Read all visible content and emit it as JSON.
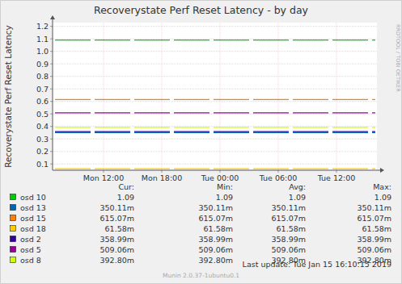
{
  "chart_data": {
    "type": "line",
    "title": "Recoverystate Perf Reset Latency - by day",
    "y_label": "Recoverystate Perf Reset Latency",
    "watermark": "RRDTOOL / TOBI OETIKER",
    "last_update": "Last update: Tue Jan 15 16:10:15 2019",
    "version": "Munin 2.0.37-1ubuntu0.1",
    "legend_columns": [
      "Cur:",
      "Min:",
      "Avg:",
      "Max:"
    ],
    "legend": "bottom",
    "grid": true,
    "line_style": "dashed",
    "x": [
      7,
      10,
      13,
      16,
      19,
      22,
      25,
      28,
      31,
      34,
      37,
      40
    ],
    "xlim": [
      6.75,
      40.17
    ],
    "xticks": [
      {
        "value": 12,
        "label": "Mon 12:00"
      },
      {
        "value": 18,
        "label": "Mon 18:00"
      },
      {
        "value": 24,
        "label": "Tue 00:00"
      },
      {
        "value": 30,
        "label": "Tue 06:00"
      },
      {
        "value": 36,
        "label": "Tue 12:00"
      }
    ],
    "ylim": [
      0.05,
      1.23
    ],
    "yticks": [
      0.1,
      0.2,
      0.3,
      0.4,
      0.5,
      0.6,
      0.7,
      0.8,
      0.9,
      {
        "value": 1,
        "label": "1.0"
      },
      1.1,
      1.2
    ],
    "series": [
      {
        "name": "osd 10",
        "color": "#00cc00",
        "values": [
          1.09,
          1.09,
          1.09,
          1.09,
          1.09,
          1.09,
          1.09,
          1.09,
          1.09,
          1.09,
          1.09,
          1.09
        ],
        "legend_values": [
          "1.09",
          "1.09",
          "1.09",
          "1.09"
        ]
      },
      {
        "name": "osd 13",
        "color": "#0066b3",
        "values": [
          0.35011,
          0.35011,
          0.35011,
          0.35011,
          0.35011,
          0.35011,
          0.35011,
          0.35011,
          0.35011,
          0.35011,
          0.35011,
          0.35011
        ],
        "legend_values": [
          "350.11m",
          "350.11m",
          "350.11m",
          "350.11m"
        ]
      },
      {
        "name": "osd 15",
        "color": "#ff8000",
        "values": [
          0.61507,
          0.61507,
          0.61507,
          0.61507,
          0.61507,
          0.61507,
          0.61507,
          0.61507,
          0.61507,
          0.61507,
          0.61507,
          0.61507
        ],
        "legend_values": [
          "615.07m",
          "615.07m",
          "615.07m",
          "615.07m"
        ]
      },
      {
        "name": "osd 18",
        "color": "#ffcc00",
        "values": [
          0.06158,
          0.06158,
          0.06158,
          0.06158,
          0.06158,
          0.06158,
          0.06158,
          0.06158,
          0.06158,
          0.06158,
          0.06158,
          0.06158
        ],
        "legend_values": [
          "61.58m",
          "61.58m",
          "61.58m",
          "61.58m"
        ]
      },
      {
        "name": "osd 2",
        "color": "#330099",
        "values": [
          0.35899,
          0.35899,
          0.35899,
          0.35899,
          0.35899,
          0.35899,
          0.35899,
          0.35899,
          0.35899,
          0.35899,
          0.35899,
          0.35899
        ],
        "legend_values": [
          "358.99m",
          "358.99m",
          "358.99m",
          "358.99m"
        ]
      },
      {
        "name": "osd 5",
        "color": "#990099",
        "values": [
          0.50906,
          0.50906,
          0.50906,
          0.50906,
          0.50906,
          0.50906,
          0.50906,
          0.50906,
          0.50906,
          0.50906,
          0.50906,
          0.50906
        ],
        "legend_values": [
          "509.06m",
          "509.06m",
          "509.06m",
          "509.06m"
        ]
      },
      {
        "name": "osd 8",
        "color": "#ccff00",
        "values": [
          0.3928,
          0.3928,
          0.3928,
          0.3928,
          0.3928,
          0.3928,
          0.3928,
          0.3928,
          0.3928,
          0.3928,
          0.3928,
          0.3928
        ],
        "legend_values": [
          "392.80m",
          "392.80m",
          "392.80m",
          "392.80m"
        ]
      }
    ]
  }
}
